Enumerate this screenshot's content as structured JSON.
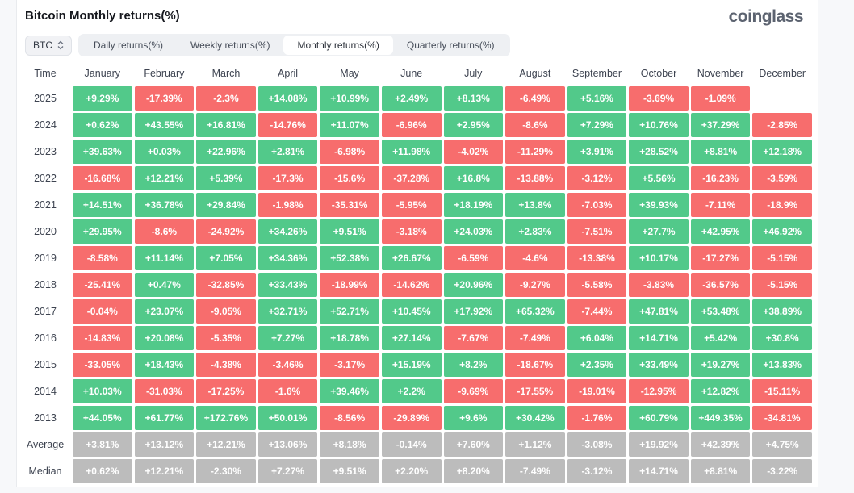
{
  "header": {
    "title": "Bitcoin Monthly returns(%)",
    "logo": "coinglass"
  },
  "controls": {
    "symbol_selector": {
      "value": "BTC",
      "icon": "sort-updown-icon"
    },
    "tabs": [
      {
        "label": "Daily returns(%)",
        "active": false
      },
      {
        "label": "Weekly returns(%)",
        "active": false
      },
      {
        "label": "Monthly returns(%)",
        "active": true
      },
      {
        "label": "Quarterly returns(%)",
        "active": false
      }
    ]
  },
  "colors": {
    "positive": "#52c98a",
    "negative": "#f76d6d",
    "summary": "#bcbcbc",
    "cell_text": "#ffffff"
  },
  "table": {
    "time_label": "Time",
    "months": [
      "January",
      "February",
      "March",
      "April",
      "May",
      "June",
      "July",
      "August",
      "September",
      "October",
      "November",
      "December"
    ],
    "rows": [
      {
        "label": "2025",
        "type": "year",
        "values": [
          "+9.29%",
          "-17.39%",
          "-2.3%",
          "+14.08%",
          "+10.99%",
          "+2.49%",
          "+8.13%",
          "-6.49%",
          "+5.16%",
          "-3.69%",
          "-1.09%",
          ""
        ]
      },
      {
        "label": "2024",
        "type": "year",
        "values": [
          "+0.62%",
          "+43.55%",
          "+16.81%",
          "-14.76%",
          "+11.07%",
          "-6.96%",
          "+2.95%",
          "-8.6%",
          "+7.29%",
          "+10.76%",
          "+37.29%",
          "-2.85%"
        ]
      },
      {
        "label": "2023",
        "type": "year",
        "values": [
          "+39.63%",
          "+0.03%",
          "+22.96%",
          "+2.81%",
          "-6.98%",
          "+11.98%",
          "-4.02%",
          "-11.29%",
          "+3.91%",
          "+28.52%",
          "+8.81%",
          "+12.18%"
        ]
      },
      {
        "label": "2022",
        "type": "year",
        "values": [
          "-16.68%",
          "+12.21%",
          "+5.39%",
          "-17.3%",
          "-15.6%",
          "-37.28%",
          "+16.8%",
          "-13.88%",
          "-3.12%",
          "+5.56%",
          "-16.23%",
          "-3.59%"
        ]
      },
      {
        "label": "2021",
        "type": "year",
        "values": [
          "+14.51%",
          "+36.78%",
          "+29.84%",
          "-1.98%",
          "-35.31%",
          "-5.95%",
          "+18.19%",
          "+13.8%",
          "-7.03%",
          "+39.93%",
          "-7.11%",
          "-18.9%"
        ]
      },
      {
        "label": "2020",
        "type": "year",
        "values": [
          "+29.95%",
          "-8.6%",
          "-24.92%",
          "+34.26%",
          "+9.51%",
          "-3.18%",
          "+24.03%",
          "+2.83%",
          "-7.51%",
          "+27.7%",
          "+42.95%",
          "+46.92%"
        ]
      },
      {
        "label": "2019",
        "type": "year",
        "values": [
          "-8.58%",
          "+11.14%",
          "+7.05%",
          "+34.36%",
          "+52.38%",
          "+26.67%",
          "-6.59%",
          "-4.6%",
          "-13.38%",
          "+10.17%",
          "-17.27%",
          "-5.15%"
        ]
      },
      {
        "label": "2018",
        "type": "year",
        "values": [
          "-25.41%",
          "+0.47%",
          "-32.85%",
          "+33.43%",
          "-18.99%",
          "-14.62%",
          "+20.96%",
          "-9.27%",
          "-5.58%",
          "-3.83%",
          "-36.57%",
          "-5.15%"
        ]
      },
      {
        "label": "2017",
        "type": "year",
        "values": [
          "-0.04%",
          "+23.07%",
          "-9.05%",
          "+32.71%",
          "+52.71%",
          "+10.45%",
          "+17.92%",
          "+65.32%",
          "-7.44%",
          "+47.81%",
          "+53.48%",
          "+38.89%"
        ]
      },
      {
        "label": "2016",
        "type": "year",
        "values": [
          "-14.83%",
          "+20.08%",
          "-5.35%",
          "+7.27%",
          "+18.78%",
          "+27.14%",
          "-7.67%",
          "-7.49%",
          "+6.04%",
          "+14.71%",
          "+5.42%",
          "+30.8%"
        ]
      },
      {
        "label": "2015",
        "type": "year",
        "values": [
          "-33.05%",
          "+18.43%",
          "-4.38%",
          "-3.46%",
          "-3.17%",
          "+15.19%",
          "+8.2%",
          "-18.67%",
          "+2.35%",
          "+33.49%",
          "+19.27%",
          "+13.83%"
        ]
      },
      {
        "label": "2014",
        "type": "year",
        "values": [
          "+10.03%",
          "-31.03%",
          "-17.25%",
          "-1.6%",
          "+39.46%",
          "+2.2%",
          "-9.69%",
          "-17.55%",
          "-19.01%",
          "-12.95%",
          "+12.82%",
          "-15.11%"
        ]
      },
      {
        "label": "2013",
        "type": "year",
        "values": [
          "+44.05%",
          "+61.77%",
          "+172.76%",
          "+50.01%",
          "-8.56%",
          "-29.89%",
          "+9.6%",
          "+30.42%",
          "-1.76%",
          "+60.79%",
          "+449.35%",
          "-34.81%"
        ]
      },
      {
        "label": "Average",
        "type": "summary",
        "values": [
          "+3.81%",
          "+13.12%",
          "+12.21%",
          "+13.06%",
          "+8.18%",
          "-0.14%",
          "+7.60%",
          "+1.12%",
          "-3.08%",
          "+19.92%",
          "+42.39%",
          "+4.75%"
        ]
      },
      {
        "label": "Median",
        "type": "summary",
        "values": [
          "+0.62%",
          "+12.21%",
          "-2.30%",
          "+7.27%",
          "+9.51%",
          "+2.20%",
          "+8.20%",
          "-7.49%",
          "-3.12%",
          "+14.71%",
          "+8.81%",
          "-3.22%"
        ]
      }
    ]
  }
}
